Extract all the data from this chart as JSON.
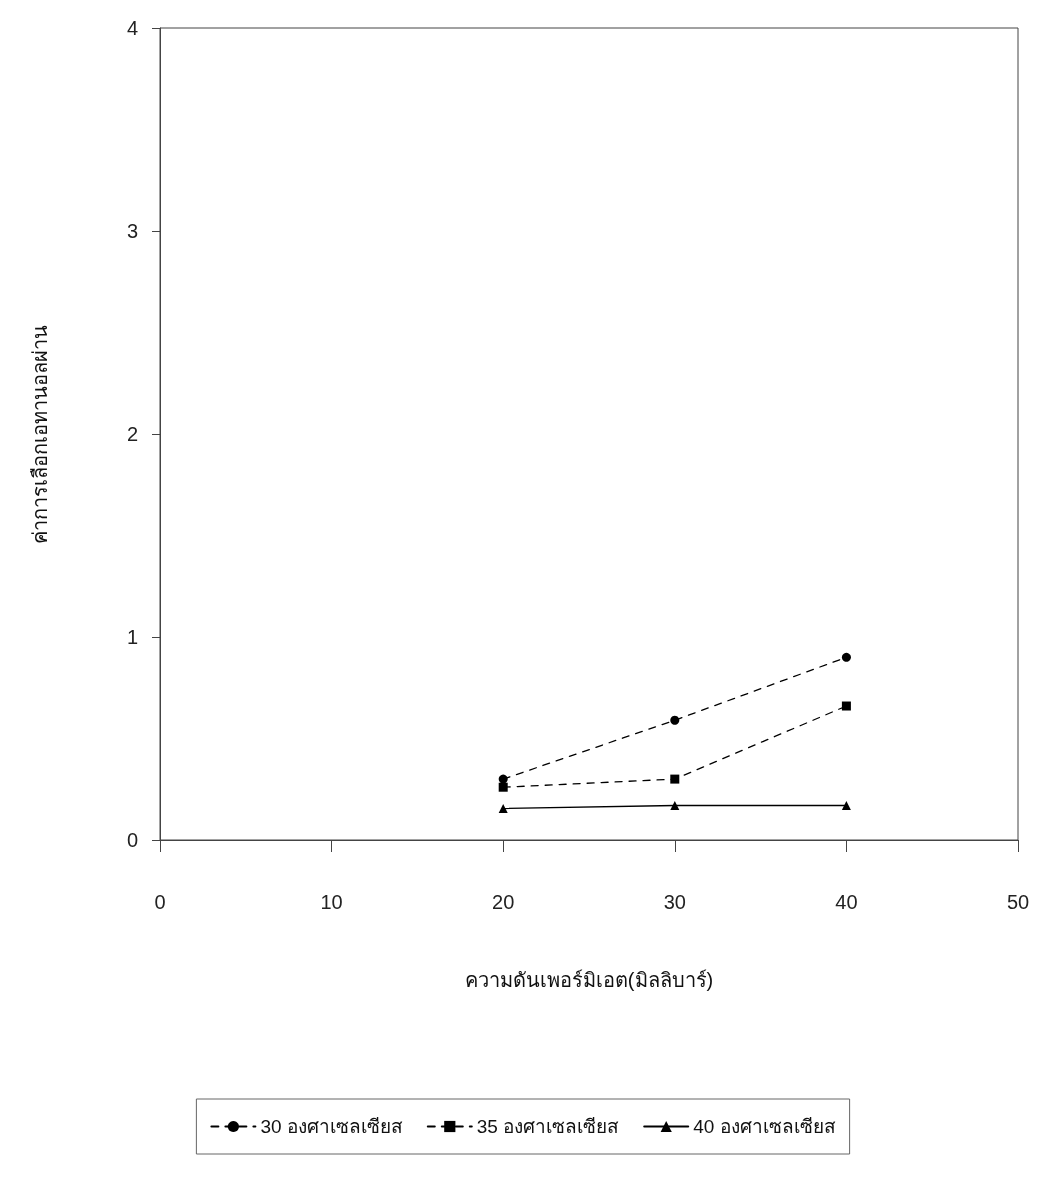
{
  "chart_data": {
    "type": "line",
    "xlabel": "ความดันเพอร์มิเอต(มิลลิบาร์)",
    "ylabel": "ค่าการเลือกเอทานอลผ่าน",
    "x": [
      20,
      30,
      40
    ],
    "series": [
      {
        "name": "30 องศาเซลเซียส",
        "color": "#000000",
        "values": [
          0.3,
          0.59,
          0.9
        ],
        "marker": "circle",
        "line_style": "dashed"
      },
      {
        "name": "35 องศาเซลเซียส",
        "color": "#000000",
        "values": [
          0.26,
          0.3,
          0.66
        ],
        "marker": "square",
        "line_style": "dashed"
      },
      {
        "name": "40 องศาเซลเซียส",
        "color": "#000000",
        "values": [
          0.155,
          0.17,
          0.17
        ],
        "marker": "triangle",
        "line_style": "solid"
      }
    ],
    "xlim": [
      0,
      50
    ],
    "xticks": [
      0,
      10,
      20,
      30,
      40,
      50
    ],
    "ylim": [
      0,
      4
    ],
    "yticks": [
      0,
      1,
      2,
      3,
      4
    ],
    "grid": false,
    "legend": "bottom"
  }
}
